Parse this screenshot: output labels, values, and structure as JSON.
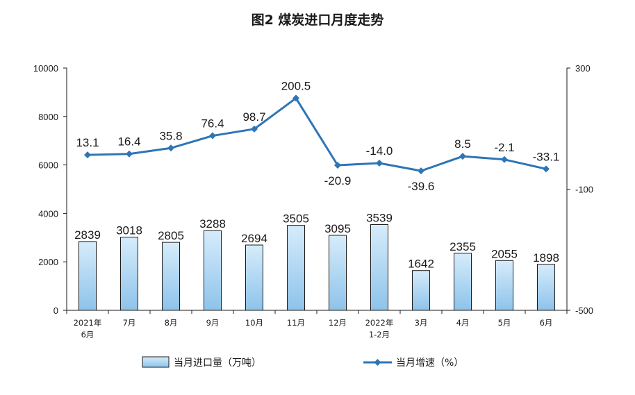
{
  "chart_data": {
    "type": "bar",
    "title": "图2  煤炭进口月度走势",
    "categories": [
      "2021年\n6月",
      "7月",
      "8月",
      "9月",
      "10月",
      "11月",
      "12月",
      "2022年\n1-2月",
      "3月",
      "4月",
      "5月",
      "6月"
    ],
    "series": [
      {
        "name": "当月进口量（万吨）",
        "type": "bar",
        "axis": "left",
        "values": [
          2839,
          3018,
          2805,
          3288,
          2694,
          3505,
          3095,
          3539,
          1642,
          2355,
          2055,
          1898
        ]
      },
      {
        "name": "当月增速（%）",
        "type": "line",
        "axis": "right",
        "values": [
          13.1,
          16.4,
          35.8,
          76.4,
          98.7,
          200.5,
          -20.9,
          -14.0,
          -39.6,
          8.5,
          -2.1,
          -33.1
        ]
      }
    ],
    "y_left": {
      "min": 0,
      "max": 10000,
      "ticks": [
        0,
        2000,
        4000,
        6000,
        8000,
        10000
      ]
    },
    "y_right": {
      "min": -500,
      "max": 300,
      "ticks": [
        -500,
        -100,
        300
      ]
    },
    "line_labels": [
      "13.1",
      "16.4",
      "35.8",
      "76.4",
      "98.7",
      "200.5",
      "-20.9",
      "-14.0",
      "-39.6",
      "8.5",
      "-2.1",
      "-33.1"
    ],
    "legend_position": "bottom",
    "grid": false,
    "colors": {
      "bar_fill_top": "#d6ecfb",
      "bar_fill_bottom": "#8ec3ea",
      "bar_stroke": "#1a1a1a",
      "line": "#2e75b6",
      "axis": "#1a1a1a"
    }
  }
}
